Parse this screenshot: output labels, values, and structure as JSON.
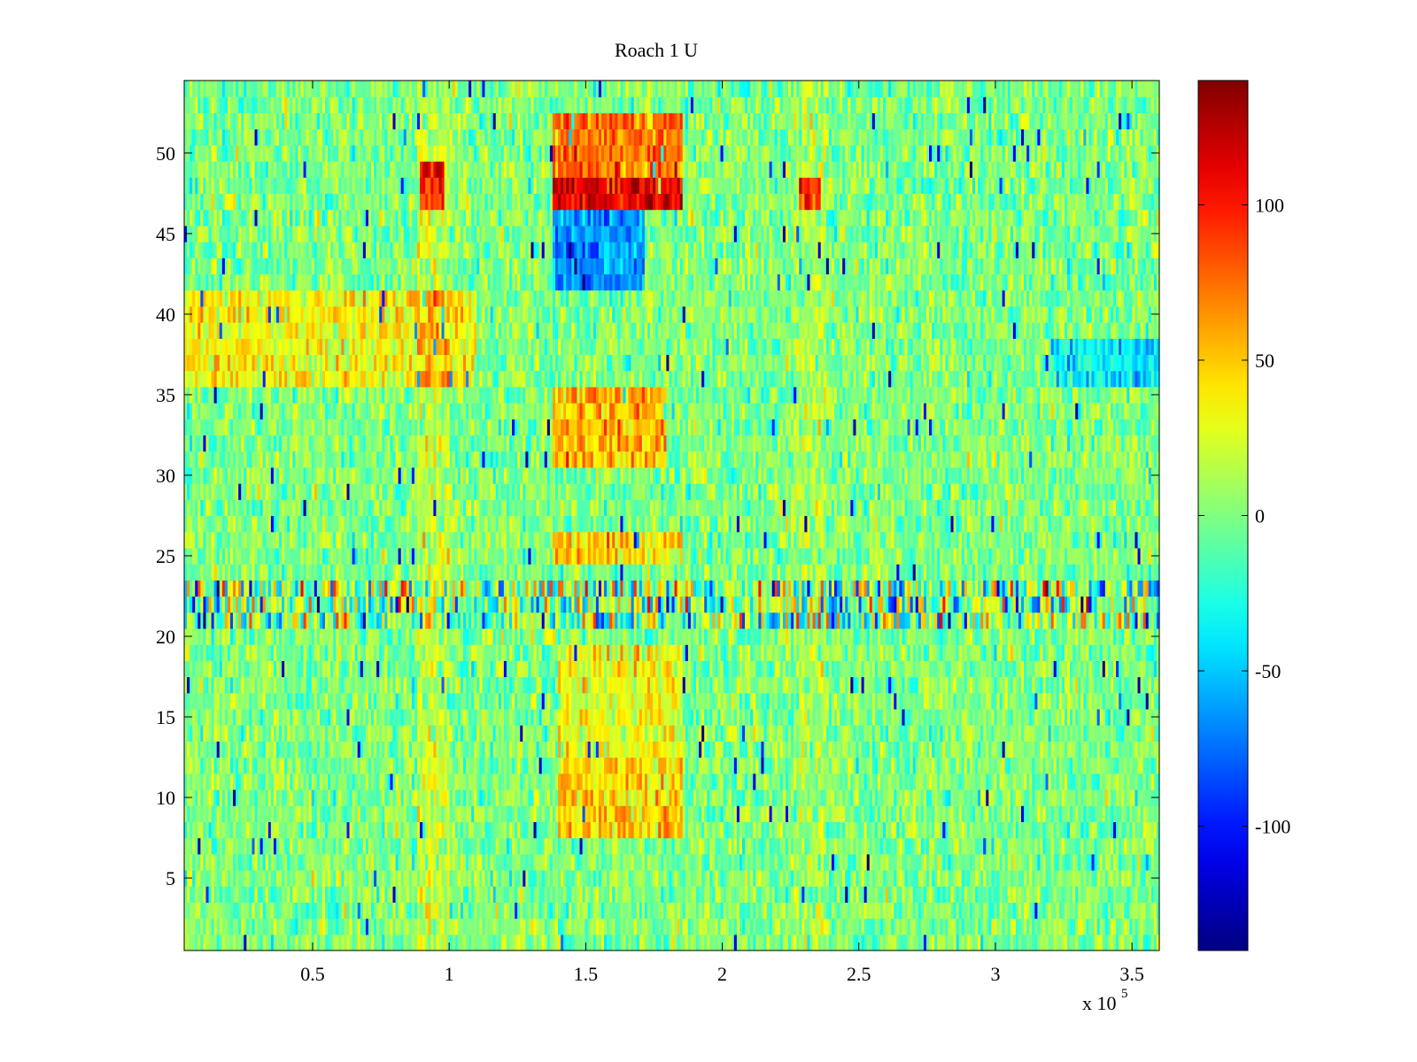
{
  "chart_data": {
    "type": "heatmap",
    "title": "Roach 1 U",
    "xlabel": "",
    "ylabel": "",
    "x_multiplier_label": {
      "prefix": "x 10",
      "exponent": "5"
    },
    "xlim": [
      3000,
      360000
    ],
    "ylim": [
      0.5,
      54.5
    ],
    "x_ticks": [
      {
        "value": 50000,
        "label": "0.5"
      },
      {
        "value": 100000,
        "label": "1"
      },
      {
        "value": 150000,
        "label": "1.5"
      },
      {
        "value": 200000,
        "label": "2"
      },
      {
        "value": 250000,
        "label": "2.5"
      },
      {
        "value": 300000,
        "label": "3"
      },
      {
        "value": 350000,
        "label": "3.5"
      }
    ],
    "y_ticks": [
      {
        "value": 5,
        "label": "5"
      },
      {
        "value": 10,
        "label": "10"
      },
      {
        "value": 15,
        "label": "15"
      },
      {
        "value": 20,
        "label": "20"
      },
      {
        "value": 25,
        "label": "25"
      },
      {
        "value": 30,
        "label": "30"
      },
      {
        "value": 35,
        "label": "35"
      },
      {
        "value": 40,
        "label": "40"
      },
      {
        "value": 45,
        "label": "45"
      },
      {
        "value": 50,
        "label": "50"
      }
    ],
    "rows": 54,
    "colorbar": {
      "colormap": "jet",
      "clim": [
        -140,
        140
      ],
      "ticks": [
        {
          "value": 100,
          "label": "100"
        },
        {
          "value": 50,
          "label": "50"
        },
        {
          "value": 0,
          "label": "0"
        },
        {
          "value": -50,
          "label": "-50"
        },
        {
          "value": -100,
          "label": "-100"
        }
      ]
    },
    "features": [
      {
        "x_range": [
          138000,
          185000
        ],
        "rows": [
          47,
          48
        ],
        "value": 115
      },
      {
        "x_range": [
          138000,
          185000
        ],
        "rows": [
          49,
          52
        ],
        "value": 75
      },
      {
        "x_range": [
          138000,
          172000
        ],
        "rows": [
          42,
          46
        ],
        "value": -65
      },
      {
        "x_range": [
          138000,
          180000
        ],
        "rows": [
          31,
          35
        ],
        "value": 55
      },
      {
        "x_range": [
          138000,
          185000
        ],
        "rows": [
          25,
          26
        ],
        "value": 45
      },
      {
        "x_range": [
          140000,
          185000
        ],
        "rows": [
          8,
          12
        ],
        "value": 48
      },
      {
        "x_range": [
          140000,
          185000
        ],
        "rows": [
          13,
          19
        ],
        "value": 30
      },
      {
        "x_range": [
          89000,
          98000
        ],
        "rows": [
          47,
          49
        ],
        "value": 85
      },
      {
        "x_range": [
          228000,
          236000
        ],
        "rows": [
          47,
          48
        ],
        "value": 80
      },
      {
        "x_range": [
          3000,
          110000
        ],
        "rows": [
          36,
          41
        ],
        "value": 35
      },
      {
        "x_range": [
          3000,
          360000
        ],
        "rows": [
          21,
          23
        ],
        "value": 0,
        "note": "high-variance band"
      },
      {
        "x_range": [
          320000,
          360000
        ],
        "rows": [
          36,
          38
        ],
        "value": -40
      }
    ]
  },
  "colors": {
    "background": "#ffffff",
    "axis": "#000000"
  }
}
